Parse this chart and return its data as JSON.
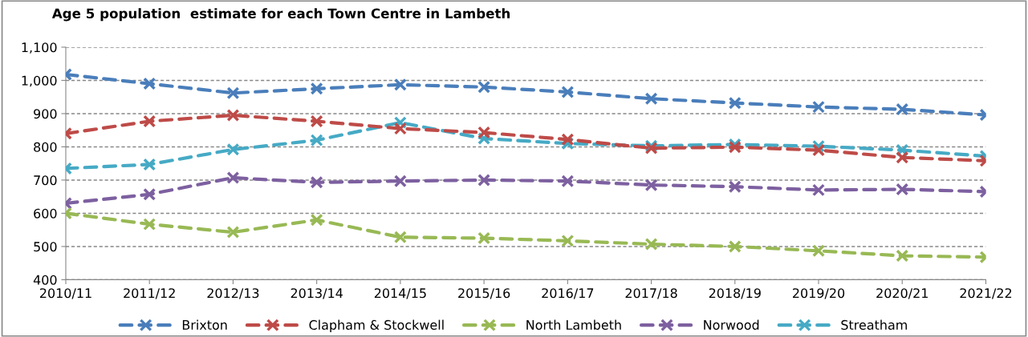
{
  "chart_data": {
    "type": "line",
    "title": "Age 5 population  estimate for each Town Centre in Lambeth",
    "categories": [
      "2010/11",
      "2011/12",
      "2012/13",
      "2013/14",
      "2014/15",
      "2015/16",
      "2016/17",
      "2017/18",
      "2018/19",
      "2019/20",
      "2020/21",
      "2021/22"
    ],
    "series": [
      {
        "name": "Brixton",
        "color": "#4a7ebb",
        "values": [
          1018,
          990,
          962,
          975,
          987,
          980,
          965,
          945,
          932,
          920,
          913,
          896
        ]
      },
      {
        "name": "Clapham & Stockwell",
        "color": "#be4b48",
        "values": [
          840,
          877,
          895,
          877,
          855,
          843,
          822,
          796,
          799,
          790,
          768,
          758
        ]
      },
      {
        "name": "North Lambeth",
        "color": "#98b954",
        "values": [
          600,
          567,
          543,
          580,
          528,
          525,
          517,
          507,
          500,
          487,
          472,
          468
        ]
      },
      {
        "name": "Norwood",
        "color": "#7d60a0",
        "values": [
          630,
          657,
          707,
          693,
          697,
          700,
          697,
          685,
          680,
          670,
          672,
          665
        ]
      },
      {
        "name": "Streatham",
        "color": "#46aac5",
        "values": [
          735,
          747,
          792,
          820,
          873,
          825,
          810,
          803,
          807,
          802,
          790,
          772
        ]
      }
    ],
    "ylim": [
      400,
      1100
    ],
    "yticks": [
      {
        "value": 400,
        "label": "400"
      },
      {
        "value": 500,
        "label": "500"
      },
      {
        "value": 600,
        "label": "600"
      },
      {
        "value": 700,
        "label": "700"
      },
      {
        "value": 800,
        "label": "800"
      },
      {
        "value": 900,
        "label": "900"
      },
      {
        "value": 1000,
        "label": "1,000"
      },
      {
        "value": 1100,
        "label": "1,100"
      }
    ],
    "grid": "y",
    "legend": "bottom",
    "marker": "cross",
    "line_style": "dashed"
  }
}
